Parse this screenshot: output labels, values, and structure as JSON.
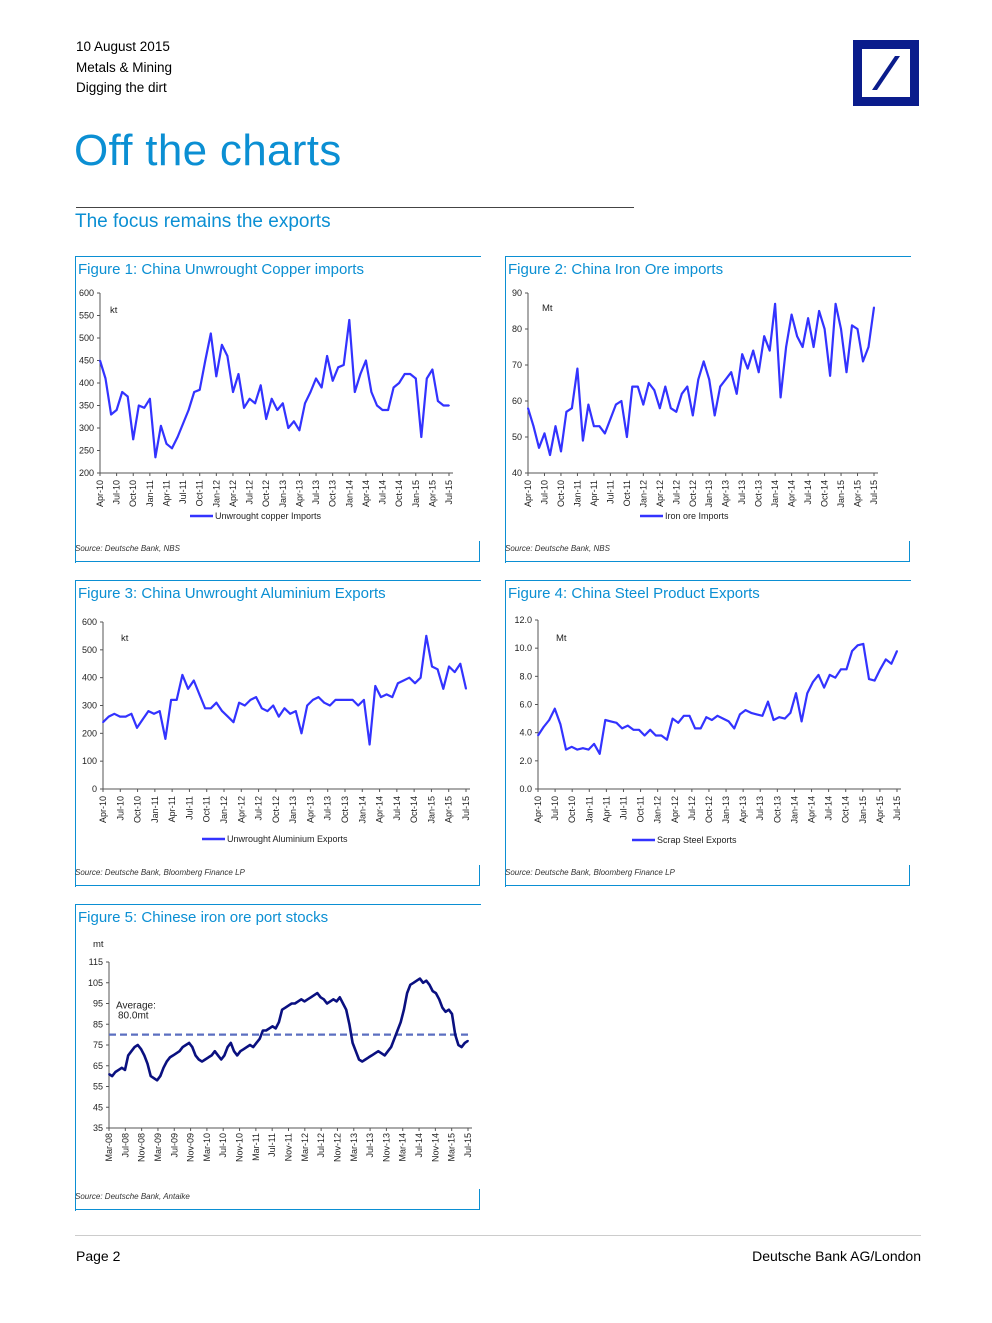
{
  "header": {
    "date": "10 August 2015",
    "sector": "Metals & Mining",
    "report": "Digging the dirt"
  },
  "logo": {
    "name": "deutsche-bank-logo",
    "color": "#0a1c8c"
  },
  "page_title": "Off the charts",
  "section_title": "The focus remains the exports",
  "footer": {
    "page": "Page 2",
    "publisher": "Deutsche Bank AG/London"
  },
  "colors": {
    "accent": "#0b8fd3",
    "series": "#3333ff",
    "series_dark": "#0a1080",
    "avg": "#5b6fc0"
  },
  "figures": [
    {
      "title": "Figure 1: China Unwrought Copper imports",
      "source": "Source: Deutsche Bank, NBS"
    },
    {
      "title": "Figure 2: China Iron Ore imports",
      "source": "Source: Deutsche Bank, NBS"
    },
    {
      "title": "Figure 3: China Unwrought Aluminium Exports",
      "source": "Source: Deutsche Bank, Bloomberg Finance LP"
    },
    {
      "title": "Figure 4: China Steel Product Exports",
      "source": "Source: Deutsche Bank, Bloomberg Finance LP"
    },
    {
      "title": "Figure 5: Chinese iron ore port stocks",
      "source": "Source: Deutsche Bank, Antaike"
    }
  ],
  "chart_data": [
    {
      "type": "line",
      "unit": "kt",
      "ylim": [
        200,
        600
      ],
      "yticks": [
        "200",
        "250",
        "300",
        "350",
        "400",
        "450",
        "500",
        "550",
        "600"
      ],
      "xticks": [
        "Apr-10",
        "Jul-10",
        "Oct-10",
        "Jan-11",
        "Apr-11",
        "Jul-11",
        "Oct-11",
        "Jan-12",
        "Apr-12",
        "Jul-12",
        "Oct-12",
        "Jan-13",
        "Apr-13",
        "Jul-13",
        "Oct-13",
        "Jan-14",
        "Apr-14",
        "Jul-14",
        "Oct-14",
        "Jan-15",
        "Apr-15",
        "Jul-15"
      ],
      "grid": false,
      "legend_position": "bottom",
      "series": [
        {
          "name": "Unwrought copper Imports",
          "values": [
            450,
            410,
            330,
            340,
            380,
            370,
            275,
            350,
            345,
            365,
            235,
            305,
            265,
            255,
            280,
            310,
            340,
            380,
            385,
            450,
            510,
            415,
            485,
            460,
            380,
            420,
            345,
            365,
            355,
            395,
            320,
            365,
            340,
            355,
            300,
            315,
            295,
            355,
            380,
            410,
            390,
            460,
            405,
            435,
            440,
            540,
            380,
            420,
            450,
            380,
            350,
            340,
            340,
            390,
            400,
            420,
            420,
            410,
            280,
            410,
            430,
            360,
            350,
            350
          ]
        }
      ]
    },
    {
      "type": "line",
      "unit": "Mt",
      "ylim": [
        40,
        90
      ],
      "yticks": [
        "40",
        "50",
        "60",
        "70",
        "80",
        "90"
      ],
      "xticks": [
        "Apr-10",
        "Jul-10",
        "Oct-10",
        "Jan-11",
        "Apr-11",
        "Jul-11",
        "Oct-11",
        "Jan-12",
        "Apr-12",
        "Jul-12",
        "Oct-12",
        "Jan-13",
        "Apr-13",
        "Jul-13",
        "Oct-13",
        "Jan-14",
        "Apr-14",
        "Jul-14",
        "Oct-14",
        "Jan-15",
        "Apr-15",
        "Jul-15"
      ],
      "grid": false,
      "legend_position": "bottom",
      "series": [
        {
          "name": "Iron ore Imports",
          "values": [
            58,
            53,
            47,
            51,
            45,
            53,
            46,
            57,
            58,
            69,
            49,
            59,
            53,
            53,
            51,
            55,
            59,
            60,
            50,
            64,
            64,
            59,
            65,
            63,
            58,
            64,
            58,
            57,
            62,
            64,
            56,
            66,
            71,
            66,
            56,
            64,
            66,
            68,
            62,
            73,
            69,
            74,
            68,
            78,
            74,
            87,
            61,
            75,
            84,
            78,
            75,
            83,
            75,
            85,
            80,
            67,
            87,
            80,
            68,
            81,
            80,
            71,
            75,
            86
          ]
        }
      ]
    },
    {
      "type": "line",
      "unit": "kt",
      "ylim": [
        0,
        600
      ],
      "yticks": [
        "0",
        "100",
        "200",
        "300",
        "400",
        "500",
        "600"
      ],
      "xticks": [
        "Apr-10",
        "Jul-10",
        "Oct-10",
        "Jan-11",
        "Apr-11",
        "Jul-11",
        "Oct-11",
        "Jan-12",
        "Apr-12",
        "Jul-12",
        "Oct-12",
        "Jan-13",
        "Apr-13",
        "Jul-13",
        "Oct-13",
        "Jan-14",
        "Apr-14",
        "Jul-14",
        "Oct-14",
        "Jan-15",
        "Apr-15",
        "Jul-15"
      ],
      "grid": false,
      "legend_position": "bottom",
      "series": [
        {
          "name": "Unwrought Aluminium Exports",
          "values": [
            240,
            260,
            270,
            260,
            260,
            270,
            220,
            250,
            280,
            270,
            280,
            180,
            320,
            320,
            410,
            360,
            390,
            340,
            290,
            290,
            310,
            280,
            260,
            240,
            310,
            300,
            320,
            330,
            290,
            280,
            300,
            260,
            290,
            270,
            280,
            200,
            300,
            320,
            330,
            310,
            300,
            320,
            320,
            320,
            320,
            300,
            320,
            160,
            370,
            330,
            340,
            330,
            380,
            390,
            400,
            380,
            400,
            550,
            440,
            430,
            360,
            440,
            420,
            450,
            360
          ]
        }
      ]
    },
    {
      "type": "line",
      "unit": "Mt",
      "ylim": [
        0,
        12
      ],
      "yticks": [
        "0.0",
        "2.0",
        "4.0",
        "6.0",
        "8.0",
        "10.0",
        "12.0"
      ],
      "xticks": [
        "Apr-10",
        "Jul-10",
        "Oct-10",
        "Jan-11",
        "Apr-11",
        "Jul-11",
        "Oct-11",
        "Jan-12",
        "Apr-12",
        "Jul-12",
        "Oct-12",
        "Jan-13",
        "Apr-13",
        "Jul-13",
        "Oct-13",
        "Jan-14",
        "Apr-14",
        "Jul-14",
        "Oct-14",
        "Jan-15",
        "Apr-15",
        "Jul-15"
      ],
      "grid": false,
      "legend_position": "bottom",
      "series": [
        {
          "name": "Scrap Steel Exports",
          "values": [
            3.8,
            4.4,
            4.9,
            5.7,
            4.6,
            2.8,
            3.0,
            2.8,
            2.9,
            2.8,
            3.2,
            2.5,
            4.9,
            4.8,
            4.7,
            4.3,
            4.5,
            4.2,
            4.2,
            3.8,
            4.2,
            3.8,
            3.8,
            3.5,
            5.0,
            4.7,
            5.2,
            5.2,
            4.3,
            4.3,
            5.1,
            4.9,
            5.2,
            5.0,
            4.8,
            4.3,
            5.3,
            5.6,
            5.4,
            5.3,
            5.2,
            6.2,
            4.9,
            5.1,
            5.0,
            5.4,
            6.8,
            4.8,
            6.8,
            7.6,
            8.1,
            7.2,
            8.1,
            7.9,
            8.5,
            8.5,
            9.8,
            10.2,
            10.3,
            7.8,
            7.7,
            8.5,
            9.2,
            8.9,
            9.8
          ]
        }
      ]
    },
    {
      "type": "line",
      "unit": "mt",
      "ylim": [
        35,
        115
      ],
      "yticks": [
        "35",
        "45",
        "55",
        "65",
        "75",
        "85",
        "95",
        "105",
        "115"
      ],
      "xticks": [
        "Mar-08",
        "Jul-08",
        "Nov-08",
        "Mar-09",
        "Jul-09",
        "Nov-09",
        "Mar-10",
        "Jul-10",
        "Nov-10",
        "Mar-11",
        "Jul-11",
        "Nov-11",
        "Mar-12",
        "Jul-12",
        "Nov-12",
        "Mar-13",
        "Jul-13",
        "Nov-13",
        "Mar-14",
        "Jul-14",
        "Nov-14",
        "Mar-15",
        "Jul-15"
      ],
      "grid": false,
      "annotation": {
        "text1": "Average:",
        "text2": "80.0mt",
        "value": 80
      },
      "series": [
        {
          "name": "",
          "values": [
            61,
            60,
            62,
            63,
            64,
            63,
            70,
            72,
            74,
            75,
            73,
            70,
            66,
            60,
            59,
            58,
            60,
            64,
            67,
            69,
            70,
            71,
            72,
            74,
            75,
            76,
            74,
            70,
            68,
            67,
            68,
            69,
            70,
            72,
            70,
            68,
            70,
            74,
            76,
            72,
            70,
            72,
            73,
            74,
            75,
            74,
            76,
            78,
            82,
            82,
            83,
            84,
            83,
            86,
            92,
            93,
            94,
            95,
            95,
            96,
            97,
            96,
            97,
            98,
            99,
            100,
            98,
            97,
            95,
            96,
            97,
            96,
            98,
            95,
            92,
            85,
            76,
            72,
            68,
            67,
            68,
            69,
            70,
            71,
            72,
            71,
            70,
            72,
            74,
            78,
            82,
            86,
            92,
            100,
            104,
            105,
            106,
            107,
            105,
            106,
            104,
            101,
            100,
            97,
            93,
            91,
            92,
            90,
            80,
            75,
            74,
            76,
            77
          ]
        }
      ]
    }
  ]
}
